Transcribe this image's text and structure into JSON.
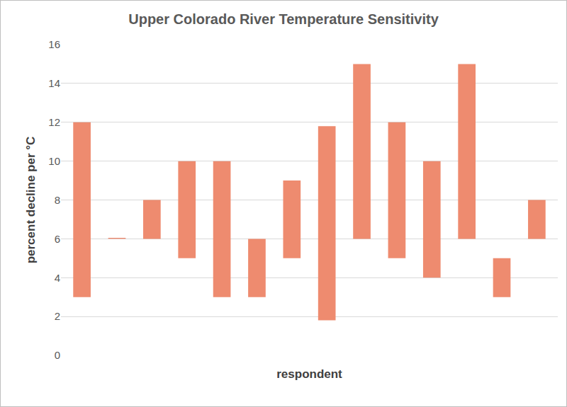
{
  "chart_data": {
    "type": "floating_bar",
    "title": "Upper Colorado River Temperature Sensitivity",
    "x_label": "respondent",
    "y_label": "percent decline per °C",
    "categories": [
      null,
      null,
      null,
      null,
      null,
      null,
      null,
      null,
      null,
      null,
      null,
      null,
      null,
      null
    ],
    "low": [
      3,
      6,
      6,
      5,
      3,
      3,
      5,
      1.8,
      6,
      5,
      4,
      6,
      3,
      6
    ],
    "high": [
      12,
      6.05,
      8,
      10,
      10,
      6,
      9,
      11.8,
      15,
      12,
      10,
      15,
      5,
      8
    ],
    "color": "#ee8b6f",
    "ylim": [
      0,
      16
    ],
    "yticks": [
      0,
      2,
      4,
      6,
      8,
      10,
      12,
      14,
      16
    ],
    "grid": true,
    "tick_labels": "y"
  }
}
